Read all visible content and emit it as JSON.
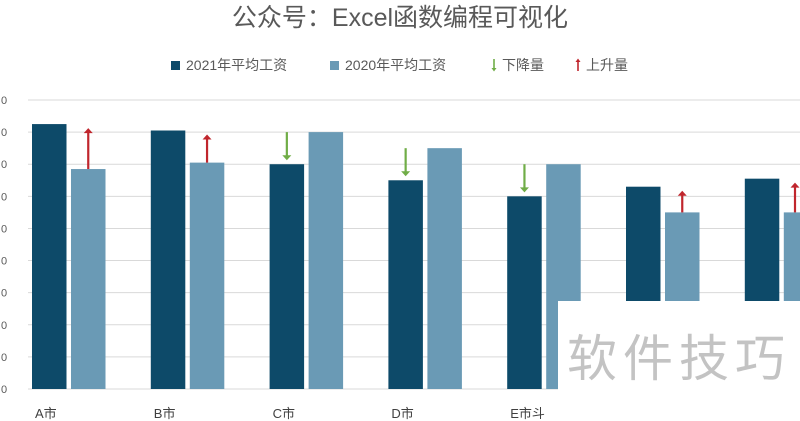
{
  "chart_data": {
    "type": "bar",
    "title": "公众号：Excel函数编程可视化",
    "categories": [
      "A市",
      "B市",
      "C市",
      "D市",
      "E市斗",
      "",
      ""
    ],
    "series": [
      {
        "name": "2021年平均工资",
        "color": "#0d4a69",
        "values": [
          8.25,
          8.05,
          7.0,
          6.5,
          6.0,
          6.3,
          6.55
        ]
      },
      {
        "name": "2020年平均工资",
        "color": "#6a9ab5",
        "values": [
          6.85,
          7.05,
          8.0,
          7.5,
          7.0,
          5.5,
          5.5
        ]
      }
    ],
    "change_markers": [
      {
        "name": "下降量",
        "color": "#70ad47",
        "icon": "down-arrow-icon"
      },
      {
        "name": "上升量",
        "color": "#c0262d",
        "icon": "up-arrow-icon"
      }
    ],
    "ylim": [
      0,
      9
    ],
    "y_tick_labels": [
      "0",
      "0",
      "0",
      "0",
      "0",
      "0",
      "0",
      "0",
      "0",
      "0"
    ],
    "grid": true,
    "legend_position": "top"
  },
  "watermark": {
    "text": "软件技巧"
  }
}
